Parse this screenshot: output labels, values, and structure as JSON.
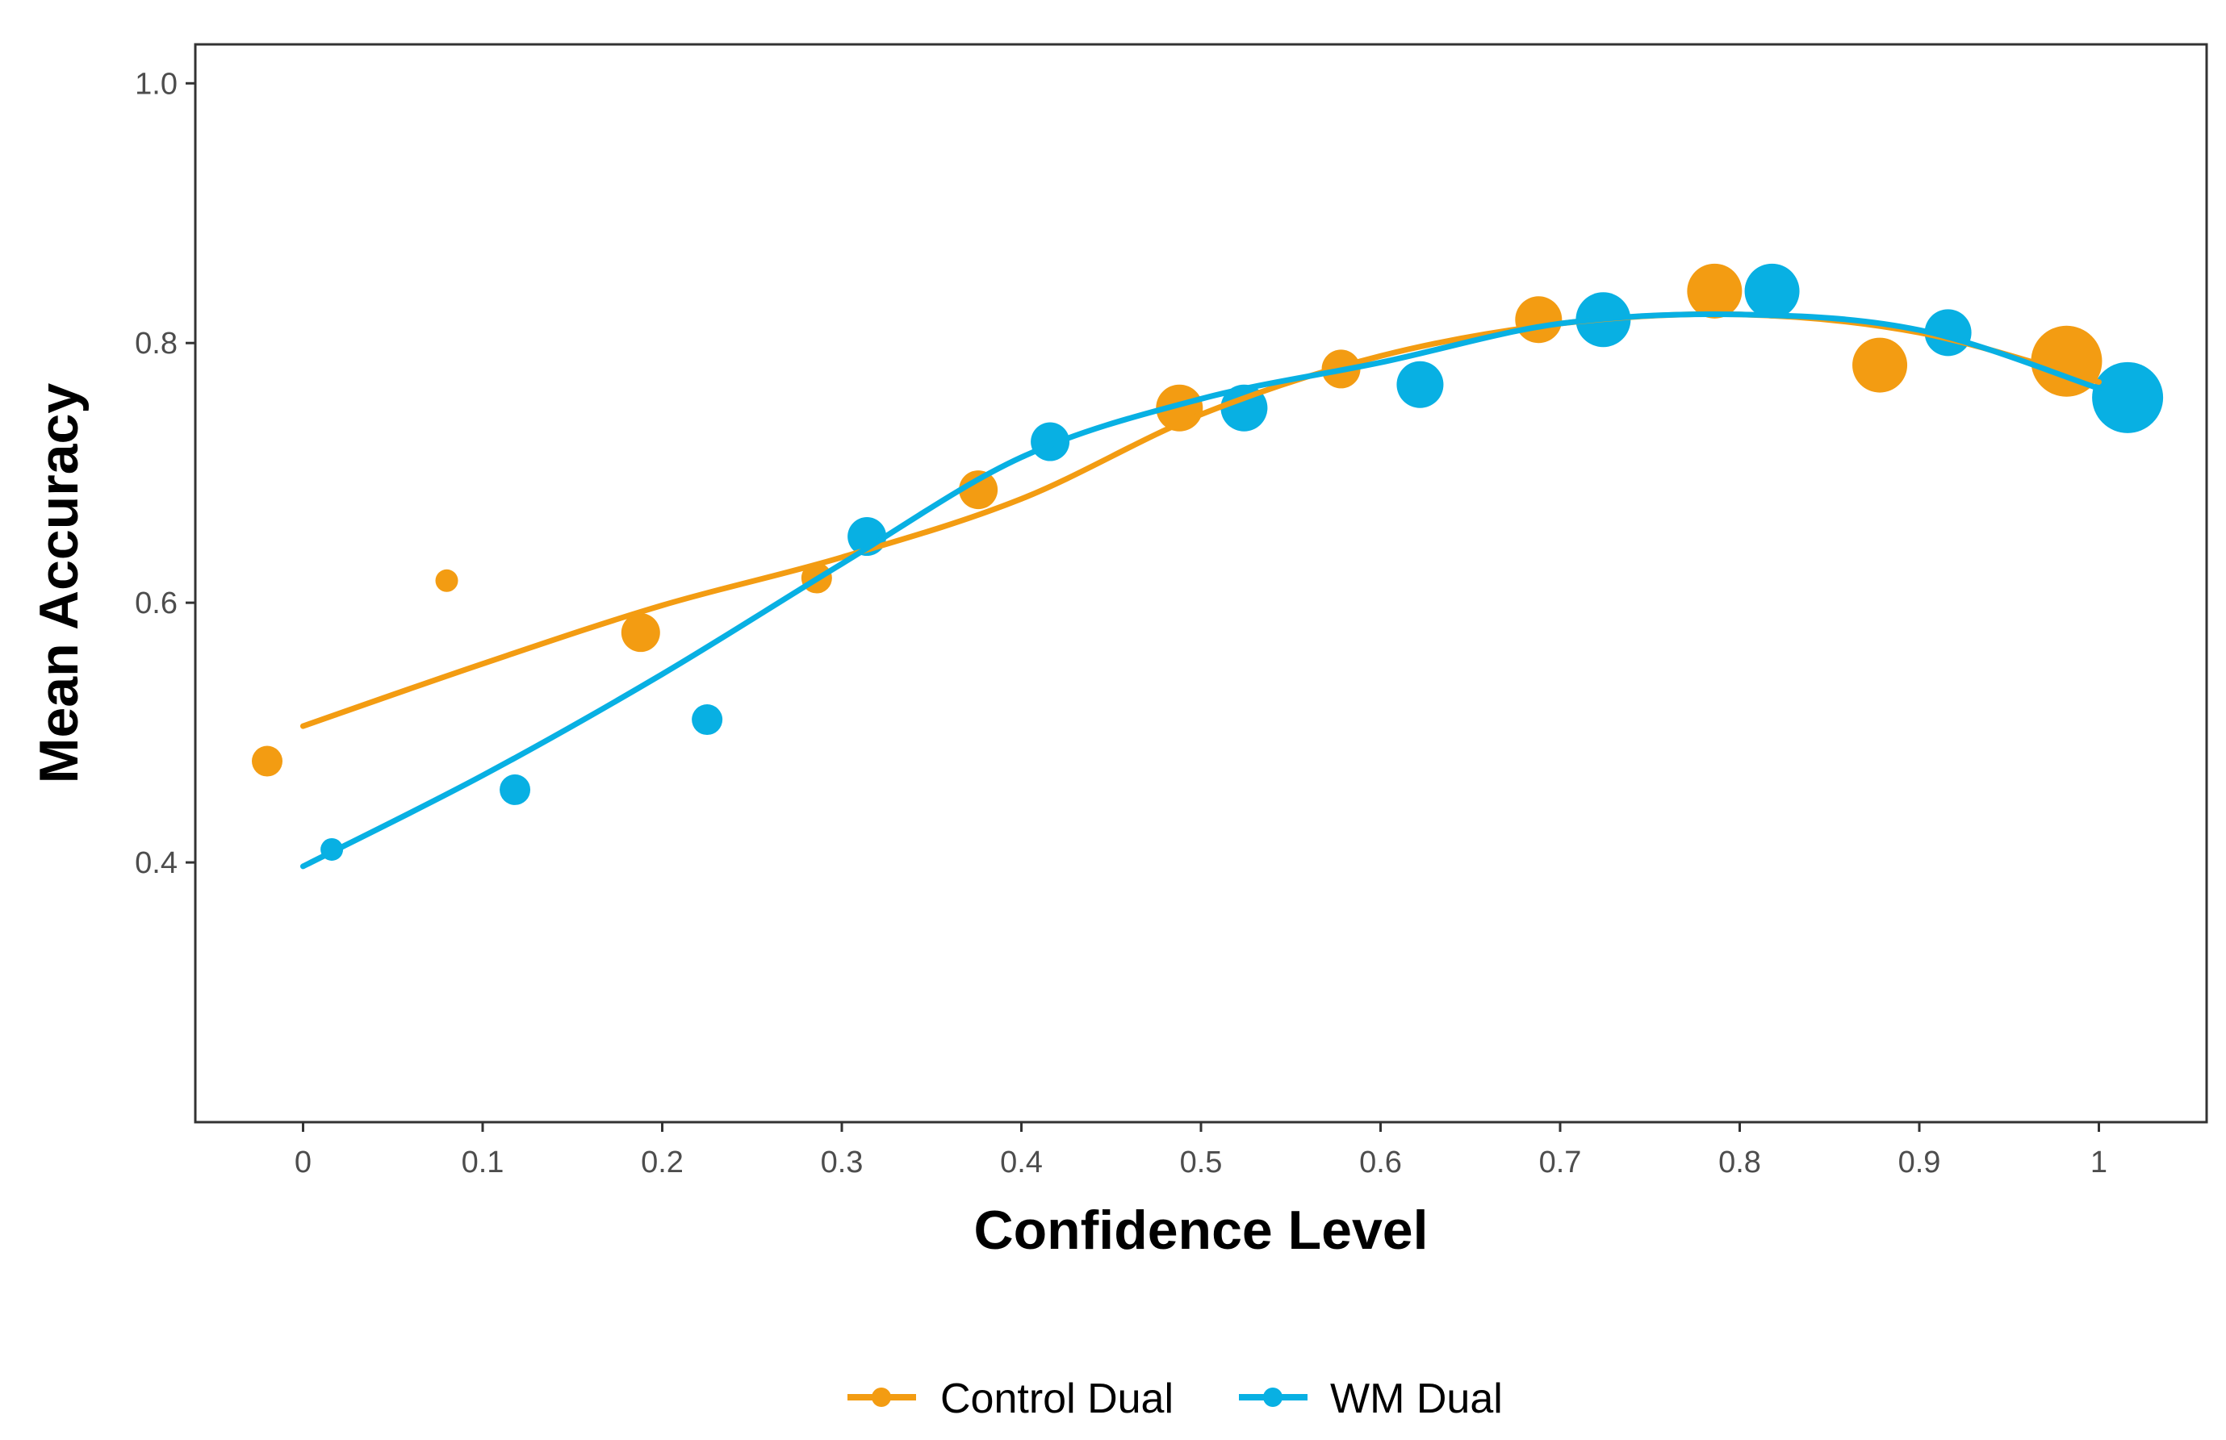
{
  "chart_data": {
    "type": "scatter",
    "title": "",
    "xlabel": "Confidence Level",
    "ylabel": "Mean Accuracy",
    "xlim": [
      -0.06,
      1.06
    ],
    "ylim": [
      0.2,
      1.03
    ],
    "x_ticks": [
      0,
      0.1,
      0.2,
      0.3,
      0.4,
      0.5,
      0.6,
      0.7,
      0.8,
      0.9,
      1
    ],
    "x_tick_labels": [
      "0",
      "0.1",
      "0.2",
      "0.3",
      "0.4",
      "0.5",
      "0.6",
      "0.7",
      "0.8",
      "0.9",
      "1"
    ],
    "y_ticks": [
      0.4,
      0.6,
      0.8,
      1.0
    ],
    "y_tick_labels": [
      "0.4",
      "0.6",
      "0.8",
      "1.0"
    ],
    "grid": false,
    "legend_position": "bottom",
    "series": [
      {
        "name": "Control Dual",
        "color": "#F39C12",
        "points": [
          {
            "x": -0.02,
            "y": 0.478,
            "size": 2
          },
          {
            "x": 0.08,
            "y": 0.617,
            "size": 1
          },
          {
            "x": 0.188,
            "y": 0.577,
            "size": 3
          },
          {
            "x": 0.286,
            "y": 0.619,
            "size": 2
          },
          {
            "x": 0.376,
            "y": 0.687,
            "size": 3
          },
          {
            "x": 0.488,
            "y": 0.75,
            "size": 4
          },
          {
            "x": 0.578,
            "y": 0.78,
            "size": 3
          },
          {
            "x": 0.688,
            "y": 0.818,
            "size": 4
          },
          {
            "x": 0.786,
            "y": 0.84,
            "size": 5
          },
          {
            "x": 0.878,
            "y": 0.783,
            "size": 5
          },
          {
            "x": 0.982,
            "y": 0.786,
            "size": 7
          }
        ],
        "smooth": [
          {
            "x": 0.0,
            "y": 0.505
          },
          {
            "x": 0.1,
            "y": 0.553
          },
          {
            "x": 0.2,
            "y": 0.598
          },
          {
            "x": 0.3,
            "y": 0.635
          },
          {
            "x": 0.4,
            "y": 0.68
          },
          {
            "x": 0.5,
            "y": 0.745
          },
          {
            "x": 0.6,
            "y": 0.79
          },
          {
            "x": 0.7,
            "y": 0.815
          },
          {
            "x": 0.8,
            "y": 0.822
          },
          {
            "x": 0.9,
            "y": 0.808
          },
          {
            "x": 1.0,
            "y": 0.77
          }
        ]
      },
      {
        "name": "WM Dual",
        "color": "#08B0E3",
        "points": [
          {
            "x": 0.016,
            "y": 0.41,
            "size": 1
          },
          {
            "x": 0.118,
            "y": 0.456,
            "size": 2
          },
          {
            "x": 0.225,
            "y": 0.51,
            "size": 2
          },
          {
            "x": 0.314,
            "y": 0.651,
            "size": 3
          },
          {
            "x": 0.416,
            "y": 0.724,
            "size": 3
          },
          {
            "x": 0.524,
            "y": 0.75,
            "size": 4
          },
          {
            "x": 0.622,
            "y": 0.768,
            "size": 4
          },
          {
            "x": 0.724,
            "y": 0.818,
            "size": 5
          },
          {
            "x": 0.818,
            "y": 0.84,
            "size": 5
          },
          {
            "x": 0.916,
            "y": 0.808,
            "size": 4
          },
          {
            "x": 1.016,
            "y": 0.758,
            "size": 7
          }
        ],
        "smooth": [
          {
            "x": 0.0,
            "y": 0.397
          },
          {
            "x": 0.1,
            "y": 0.467
          },
          {
            "x": 0.2,
            "y": 0.545
          },
          {
            "x": 0.3,
            "y": 0.63
          },
          {
            "x": 0.4,
            "y": 0.712
          },
          {
            "x": 0.5,
            "y": 0.757
          },
          {
            "x": 0.6,
            "y": 0.785
          },
          {
            "x": 0.7,
            "y": 0.815
          },
          {
            "x": 0.8,
            "y": 0.822
          },
          {
            "x": 0.9,
            "y": 0.81
          },
          {
            "x": 1.0,
            "y": 0.765
          }
        ]
      }
    ]
  }
}
